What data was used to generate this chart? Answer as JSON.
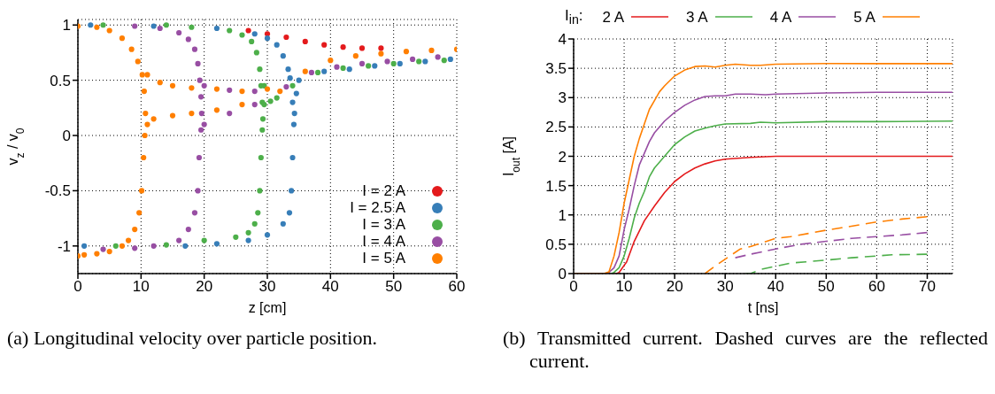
{
  "chart_data": [
    {
      "type": "scatter",
      "xlabel": "z [cm]",
      "ylabel": "v$_{z}$ / v$_{0}$",
      "xlim": [
        0,
        60
      ],
      "xticks": [
        0,
        10,
        20,
        30,
        40,
        50,
        60
      ],
      "ylim": [
        -1.25,
        1.05
      ],
      "yticks": [
        -1,
        -0.5,
        0,
        0.5,
        1
      ],
      "grid": true,
      "legend": "bottom right",
      "marker": "circle",
      "annotations": [
        "(a) Longitudinal velocity over particle position."
      ],
      "series": [
        {
          "name": "I = 2 A",
          "color": "#e41a1c",
          "x": [
            27,
            30,
            33,
            36,
            39,
            42,
            45,
            48
          ],
          "values": [
            0.95,
            0.92,
            0.89,
            0.85,
            0.82,
            0.8,
            0.79,
            0.79
          ]
        },
        {
          "name": "I = 2.5 A",
          "color": "#377eb8",
          "x": [
            2,
            12,
            22,
            28,
            30,
            31.5,
            32.5,
            33.3,
            33.6,
            34,
            34.2,
            34,
            33.8,
            33.5,
            32.5,
            30,
            27,
            22,
            17,
            1,
            34.3,
            34.6,
            35,
            39,
            43,
            47,
            51,
            55,
            59
          ],
          "values": [
            1,
            0.99,
            0.97,
            0.92,
            0.88,
            0.82,
            0.72,
            0.6,
            0.52,
            0.3,
            0.1,
            -0.2,
            -0.5,
            -0.7,
            -0.8,
            -0.9,
            -0.95,
            -0.98,
            -1,
            -1,
            0.2,
            0.38,
            0.5,
            0.58,
            0.6,
            0.63,
            0.65,
            0.67,
            0.69
          ]
        },
        {
          "name": "I = 3 A",
          "color": "#4daf4a",
          "x": [
            4,
            14,
            18,
            24,
            26,
            27.5,
            28.3,
            28.8,
            29,
            29.2,
            29.3,
            29.2,
            29,
            28.8,
            28.5,
            28,
            27,
            25,
            20,
            14,
            6,
            29.5,
            29.5,
            30.5,
            31.5,
            34,
            38,
            42,
            46,
            50,
            54,
            58
          ],
          "values": [
            1,
            1,
            0.98,
            0.95,
            0.91,
            0.85,
            0.75,
            0.6,
            0.45,
            0.3,
            0.15,
            0.05,
            -0.2,
            -0.5,
            -0.7,
            -0.8,
            -0.88,
            -0.92,
            -0.95,
            -0.99,
            -1,
            0.28,
            0.45,
            0.31,
            0.34,
            0.45,
            0.57,
            0.61,
            0.63,
            0.65,
            0.67,
            0.68
          ]
        },
        {
          "name": "I = 4 A",
          "color": "#984ea3",
          "x": [
            9,
            13,
            16,
            17.5,
            18.5,
            19,
            19.3,
            19.5,
            19.6,
            19.5,
            19.2,
            19,
            18.5,
            17.5,
            16,
            12,
            9,
            4,
            20,
            24,
            28,
            20,
            24,
            28,
            33,
            37,
            41,
            45,
            49,
            53,
            57
          ],
          "values": [
            0.99,
            0.97,
            0.93,
            0.87,
            0.78,
            0.65,
            0.5,
            0.35,
            0.2,
            0.05,
            -0.2,
            -0.5,
            -0.7,
            -0.85,
            -0.95,
            -1,
            -1.02,
            -1.03,
            0.45,
            0.41,
            0.4,
            0.1,
            0.2,
            0.28,
            0.44,
            0.57,
            0.62,
            0.65,
            0.67,
            0.69,
            0.71
          ]
        },
        {
          "name": "I = 5 A",
          "color": "#ff7f00",
          "x": [
            0,
            3,
            5,
            7,
            8.5,
            9.5,
            10.2,
            10.5,
            10.7,
            10.6,
            10.4,
            10.1,
            9.7,
            9,
            8,
            7,
            5,
            3,
            1,
            0,
            11,
            13,
            15,
            18,
            22,
            26,
            30,
            11,
            12,
            15,
            18,
            22,
            26,
            32,
            36,
            40,
            44,
            48,
            52,
            56,
            60
          ],
          "values": [
            0.99,
            0.98,
            0.95,
            0.88,
            0.78,
            0.67,
            0.55,
            0.4,
            0.2,
            0,
            -0.2,
            -0.5,
            -0.7,
            -0.85,
            -0.95,
            -1,
            -1.05,
            -1.07,
            -1.08,
            -1.09,
            0.55,
            0.48,
            0.45,
            0.43,
            0.42,
            0.4,
            0.42,
            0.1,
            0.15,
            0.18,
            0.2,
            0.23,
            0.28,
            0.4,
            0.58,
            0.68,
            0.72,
            0.74,
            0.76,
            0.77,
            0.78
          ]
        }
      ]
    },
    {
      "type": "line",
      "xlabel": "t [ns]",
      "ylabel": "I$_{out}$ [A]",
      "xlim": [
        0,
        75
      ],
      "xticks": [
        0,
        10,
        20,
        30,
        40,
        50,
        60,
        70
      ],
      "ylim": [
        0,
        4
      ],
      "yticks": [
        0,
        0.5,
        1,
        1.5,
        2,
        2.5,
        3,
        3.5,
        4
      ],
      "grid": true,
      "legend": "top",
      "legend_title": "I$_{in}$:",
      "annotations": [
        "(b) Transmitted current. Dashed curves are the reflected current."
      ],
      "series": [
        {
          "name": "2 A",
          "color": "#e41a1c",
          "line_style": "solid",
          "x": [
            0,
            8.5,
            9,
            10.5,
            12,
            14,
            16,
            18,
            20,
            22,
            24,
            26,
            28,
            30,
            35,
            40,
            75
          ],
          "values": [
            0,
            0,
            0.02,
            0.2,
            0.55,
            0.9,
            1.15,
            1.38,
            1.57,
            1.7,
            1.8,
            1.87,
            1.92,
            1.95,
            1.98,
            2,
            2
          ]
        },
        {
          "name": "3 A",
          "color": "#4daf4a",
          "line_style": "solid",
          "x": [
            0,
            7.5,
            8,
            9,
            10,
            11,
            12,
            13,
            14,
            15,
            16,
            18,
            20,
            22,
            24,
            26,
            28,
            30,
            35,
            37,
            40,
            50,
            60,
            75
          ],
          "values": [
            0,
            0,
            0.02,
            0.1,
            0.3,
            0.6,
            0.95,
            1.2,
            1.4,
            1.65,
            1.8,
            2,
            2.2,
            2.33,
            2.43,
            2.48,
            2.52,
            2.55,
            2.56,
            2.58,
            2.57,
            2.59,
            2.59,
            2.6
          ]
        },
        {
          "name": "4 A",
          "color": "#984ea3",
          "line_style": "solid",
          "x": [
            0,
            6.5,
            7,
            8,
            9,
            10,
            11,
            12,
            13,
            14,
            15,
            16,
            18,
            20,
            22,
            24,
            26,
            28,
            30,
            32,
            35,
            38,
            40,
            50,
            60,
            75
          ],
          "values": [
            0,
            0,
            0.02,
            0.1,
            0.3,
            0.75,
            1.1,
            1.5,
            1.85,
            2.05,
            2.25,
            2.4,
            2.6,
            2.75,
            2.87,
            2.96,
            3.02,
            3.03,
            3.03,
            3.06,
            3.06,
            3.05,
            3.06,
            3.08,
            3.09,
            3.09
          ]
        },
        {
          "name": "5 A",
          "color": "#ff7f00",
          "line_style": "solid",
          "x": [
            0,
            6,
            7,
            8,
            9,
            10,
            11,
            12,
            13,
            14,
            15,
            16,
            17,
            18,
            20,
            22,
            24,
            26,
            28,
            30,
            32,
            35,
            37,
            40,
            50,
            60,
            75
          ],
          "values": [
            0,
            0,
            0.03,
            0.3,
            0.7,
            1.2,
            1.6,
            2,
            2.3,
            2.55,
            2.8,
            2.95,
            3.1,
            3.2,
            3.37,
            3.47,
            3.53,
            3.54,
            3.52,
            3.55,
            3.57,
            3.55,
            3.55,
            3.57,
            3.58,
            3.58,
            3.58
          ]
        },
        {
          "color": "#4daf4a",
          "line_style": "dashed",
          "x": [
            34,
            35,
            37,
            43,
            46,
            50,
            55,
            60,
            63,
            70
          ],
          "values": [
            0,
            0,
            0.07,
            0.18,
            0.2,
            0.23,
            0.27,
            0.3,
            0.32,
            0.33
          ]
        },
        {
          "color": "#984ea3",
          "line_style": "dashed",
          "x": [
            32,
            35,
            40,
            45,
            50,
            55,
            60,
            65,
            70
          ],
          "values": [
            0.27,
            0.33,
            0.42,
            0.5,
            0.55,
            0.6,
            0.63,
            0.66,
            0.7
          ]
        },
        {
          "color": "#ff7f00",
          "line_style": "dashed",
          "x": [
            26,
            28,
            33,
            35,
            40,
            43,
            50,
            53,
            60,
            65,
            70
          ],
          "values": [
            0,
            0.13,
            0.42,
            0.46,
            0.6,
            0.63,
            0.74,
            0.78,
            0.88,
            0.93,
            0.97
          ]
        }
      ]
    }
  ]
}
